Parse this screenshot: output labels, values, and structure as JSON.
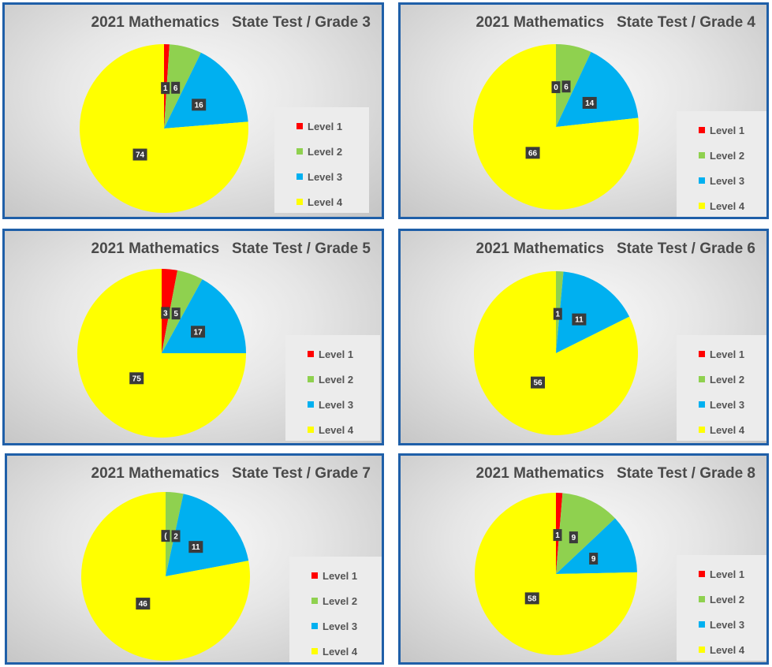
{
  "colors": {
    "Level 1": "#ff0000",
    "Level 2": "#8fd14f",
    "Level 3": "#00b0f0",
    "Level 4": "#ffff00"
  },
  "legend_labels": [
    "Level 1",
    "Level 2",
    "Level 3",
    "Level 4"
  ],
  "chart_data": [
    {
      "type": "pie",
      "title": "2021 Mathematics   State Test / Grade 3",
      "categories": [
        "Level 1",
        "Level 2",
        "Level 3",
        "Level 4"
      ],
      "values": [
        1,
        6,
        16,
        74
      ],
      "data_labels": [
        "1",
        "6",
        "16",
        "74"
      ],
      "legend": "right"
    },
    {
      "type": "pie",
      "title": "2021 Mathematics   State Test / Grade 4",
      "categories": [
        "Level 1",
        "Level 2",
        "Level 3",
        "Level 4"
      ],
      "values": [
        0,
        6,
        14,
        66
      ],
      "data_labels": [
        "0",
        "6",
        "14",
        "66"
      ],
      "legend": "right"
    },
    {
      "type": "pie",
      "title": "2021 Mathematics   State Test / Grade 5",
      "categories": [
        "Level 1",
        "Level 2",
        "Level 3",
        "Level 4"
      ],
      "values": [
        3,
        5,
        17,
        75
      ],
      "data_labels": [
        "3",
        "5",
        "17",
        "75"
      ],
      "legend": "right"
    },
    {
      "type": "pie",
      "title": "2021 Mathematics   State Test / Grade 6",
      "categories": [
        "Level 1",
        "Level 2",
        "Level 3",
        "Level 4"
      ],
      "values": [
        0,
        1,
        11,
        56
      ],
      "data_labels": [
        "",
        "1",
        "11",
        "56"
      ],
      "legend": "right"
    },
    {
      "type": "pie",
      "title": "2021 Mathematics   State Test / Grade 7",
      "categories": [
        "Level 1",
        "Level 2",
        "Level 3",
        "Level 4"
      ],
      "values": [
        0,
        2,
        11,
        46
      ],
      "data_labels": [
        "(",
        "2",
        "11",
        "46"
      ],
      "legend": "right"
    },
    {
      "type": "pie",
      "title": "2021 Mathematics   State Test / Grade 8",
      "categories": [
        "Level 1",
        "Level 2",
        "Level 3",
        "Level 4"
      ],
      "values": [
        1,
        9,
        9,
        58
      ],
      "data_labels": [
        "1",
        "9",
        "9",
        "58"
      ],
      "legend": "right"
    }
  ]
}
